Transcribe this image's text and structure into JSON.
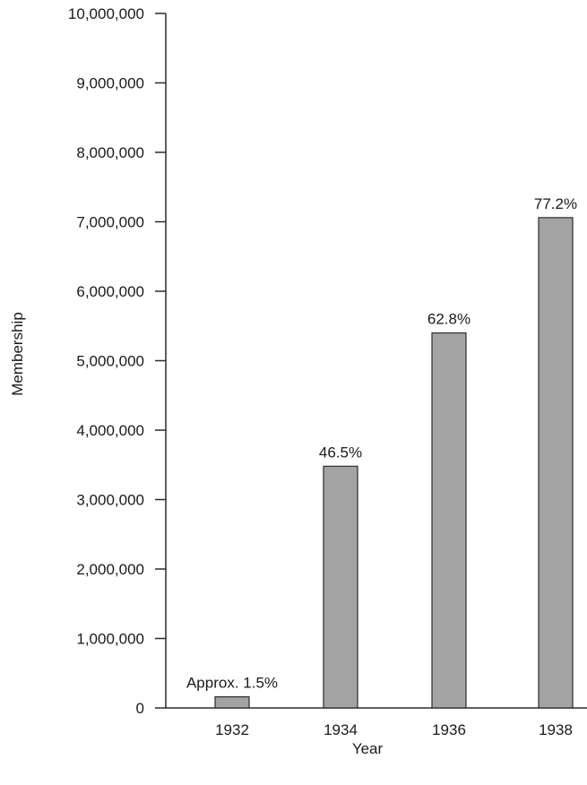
{
  "chart_data": {
    "type": "bar",
    "categories": [
      "1932",
      "1934",
      "1936",
      "1938"
    ],
    "values": [
      160000,
      3480000,
      5400000,
      7060000
    ],
    "data_labels": [
      "Approx. 1.5%",
      "46.5%",
      "62.8%",
      "77.2%"
    ],
    "xlabel": "Year",
    "ylabel": "Membership",
    "ylim": [
      0,
      10000000
    ],
    "yticks": [
      0,
      1000000,
      2000000,
      3000000,
      4000000,
      5000000,
      6000000,
      7000000,
      8000000,
      9000000,
      10000000
    ],
    "ytick_labels": [
      "0",
      "1,000,000",
      "2,000,000",
      "3,000,000",
      "4,000,000",
      "5,000,000",
      "6,000,000",
      "7,000,000",
      "8,000,000",
      "9,000,000",
      "10,000,000"
    ],
    "grid": false,
    "legend": "none",
    "colors": {
      "bar_fill": "#a3a3a3",
      "bar_stroke": "#2b2b2b",
      "axis": "#2b2b2b",
      "text": "#1a1a1a"
    }
  }
}
